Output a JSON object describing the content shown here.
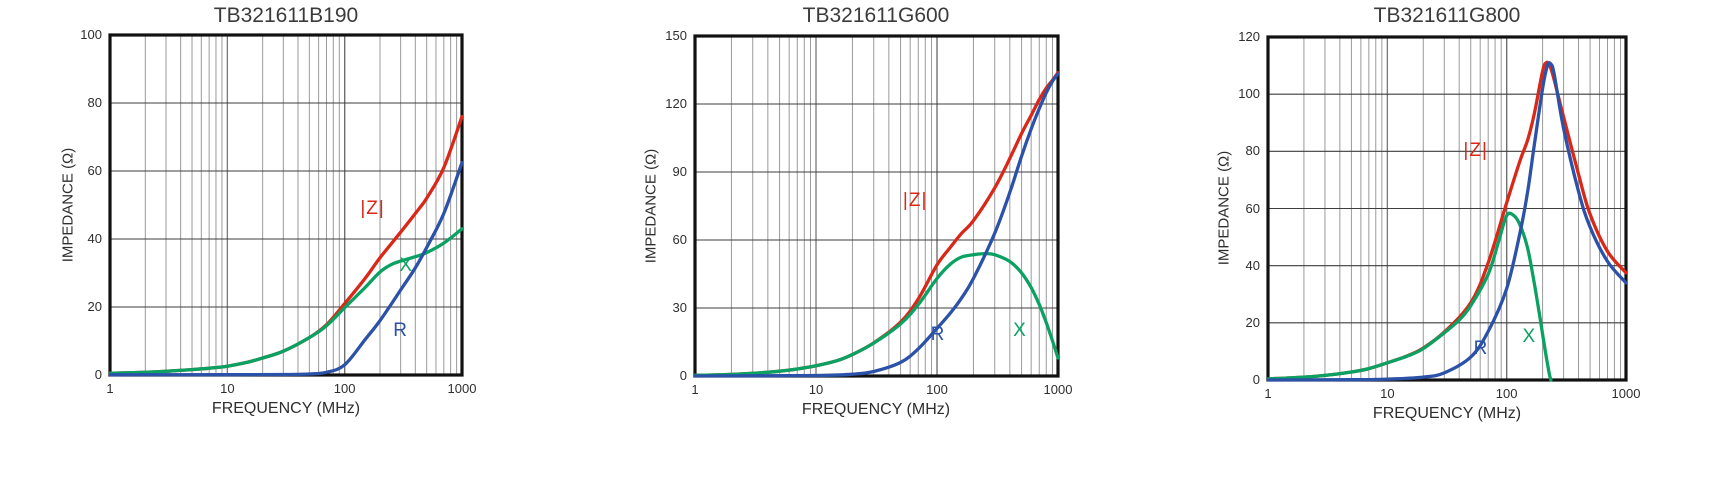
{
  "chart_data": [
    {
      "type": "line",
      "title": "TB321611B190",
      "xlabel": "FREQUENCY (MHz)",
      "ylabel": "IMPEDANCE (Ω)",
      "xscale": "log",
      "xlim": [
        1,
        1000
      ],
      "ylim": [
        0,
        100
      ],
      "x_ticks": [
        1,
        10,
        100,
        1000
      ],
      "y_ticks": [
        0,
        20,
        40,
        60,
        80,
        100
      ],
      "grid": true,
      "legend_position": "inline-labels",
      "series": [
        {
          "name": "|Z|",
          "color": "#d92718",
          "points": [
            [
              1,
              0.5
            ],
            [
              2,
              0.8
            ],
            [
              3,
              1.1
            ],
            [
              5,
              1.6
            ],
            [
              7,
              2.0
            ],
            [
              10,
              2.6
            ],
            [
              15,
              3.8
            ],
            [
              20,
              5
            ],
            [
              30,
              7
            ],
            [
              50,
              11
            ],
            [
              70,
              14.8
            ],
            [
              100,
              21
            ],
            [
              150,
              28.5
            ],
            [
              200,
              34.5
            ],
            [
              300,
              42
            ],
            [
              400,
              47.5
            ],
            [
              500,
              52
            ],
            [
              700,
              61
            ],
            [
              1000,
              76
            ]
          ]
        },
        {
          "name": "X",
          "color": "#0ba163",
          "points": [
            [
              1,
              0.5
            ],
            [
              2,
              0.8
            ],
            [
              3,
              1.1
            ],
            [
              5,
              1.6
            ],
            [
              7,
              2.0
            ],
            [
              10,
              2.6
            ],
            [
              15,
              3.8
            ],
            [
              20,
              5
            ],
            [
              30,
              7
            ],
            [
              50,
              11
            ],
            [
              70,
              14.5
            ],
            [
              100,
              19.8
            ],
            [
              150,
              25.8
            ],
            [
              200,
              30.3
            ],
            [
              250,
              32.5
            ],
            [
              300,
              33.5
            ],
            [
              400,
              34.8
            ],
            [
              500,
              36
            ],
            [
              700,
              38.8
            ],
            [
              1000,
              43
            ]
          ]
        },
        {
          "name": "R",
          "color": "#2b52a8",
          "points": [
            [
              1,
              0.05
            ],
            [
              10,
              0.1
            ],
            [
              30,
              0.15
            ],
            [
              50,
              0.3
            ],
            [
              70,
              0.8
            ],
            [
              100,
              3
            ],
            [
              150,
              10.5
            ],
            [
              200,
              16
            ],
            [
              300,
              25
            ],
            [
              400,
              31.5
            ],
            [
              500,
              37.5
            ],
            [
              700,
              47.5
            ],
            [
              1000,
              62.5
            ]
          ]
        }
      ],
      "annotations": [
        {
          "text": "|Z|",
          "series": 0,
          "f": 173,
          "v": 48.8
        },
        {
          "text": "R",
          "series": 2,
          "f": 300,
          "v": 13
        },
        {
          "text": "X",
          "series": 1,
          "f": 335,
          "v": 32
        }
      ]
    },
    {
      "type": "line",
      "title": "TB321611G600",
      "xlabel": "FREQUENCY (MHz)",
      "ylabel": "IMPEDANCE (Ω)",
      "xscale": "log",
      "xlim": [
        1,
        1000
      ],
      "ylim": [
        0,
        150
      ],
      "x_ticks": [
        1,
        10,
        100,
        1000
      ],
      "y_ticks": [
        0,
        30,
        60,
        90,
        120,
        150
      ],
      "grid": true,
      "legend_position": "inline-labels",
      "series": [
        {
          "name": "|Z|",
          "color": "#d92718",
          "points": [
            [
              1,
              0.3
            ],
            [
              2,
              0.7
            ],
            [
              3,
              1.2
            ],
            [
              5,
              2.1
            ],
            [
              7,
              3.1
            ],
            [
              10,
              4.5
            ],
            [
              15,
              6.8
            ],
            [
              20,
              9.5
            ],
            [
              30,
              14.6
            ],
            [
              50,
              23.8
            ],
            [
              70,
              34
            ],
            [
              100,
              49
            ],
            [
              130,
              57
            ],
            [
              160,
              63
            ],
            [
              200,
              68.5
            ],
            [
              300,
              83
            ],
            [
              400,
              96
            ],
            [
              500,
              107
            ],
            [
              600,
              115
            ],
            [
              700,
              122
            ],
            [
              800,
              127
            ],
            [
              900,
              130.5
            ],
            [
              1000,
              133.8
            ]
          ]
        },
        {
          "name": "X",
          "color": "#0ba163",
          "points": [
            [
              1,
              0.3
            ],
            [
              2,
              0.7
            ],
            [
              3,
              1.2
            ],
            [
              5,
              2.1
            ],
            [
              7,
              3.1
            ],
            [
              10,
              4.5
            ],
            [
              15,
              6.8
            ],
            [
              20,
              9.5
            ],
            [
              30,
              14.5
            ],
            [
              50,
              23
            ],
            [
              70,
              31.5
            ],
            [
              100,
              43
            ],
            [
              130,
              49.5
            ],
            [
              160,
              52.5
            ],
            [
              200,
              53.5
            ],
            [
              250,
              54
            ],
            [
              300,
              53.5
            ],
            [
              400,
              50.5
            ],
            [
              500,
              45.5
            ],
            [
              600,
              39
            ],
            [
              700,
              31.5
            ],
            [
              800,
              23.5
            ],
            [
              900,
              15.5
            ],
            [
              1000,
              8
            ]
          ]
        },
        {
          "name": "R",
          "color": "#2b52a8",
          "points": [
            [
              1,
              0
            ],
            [
              10,
              0.2
            ],
            [
              20,
              0.8
            ],
            [
              30,
              2
            ],
            [
              50,
              6
            ],
            [
              70,
              12
            ],
            [
              100,
              21
            ],
            [
              130,
              28
            ],
            [
              160,
              34.5
            ],
            [
              200,
              43
            ],
            [
              300,
              63
            ],
            [
              400,
              81
            ],
            [
              500,
              97
            ],
            [
              600,
              109
            ],
            [
              700,
              118
            ],
            [
              800,
              125
            ],
            [
              900,
              130
            ],
            [
              1000,
              133.3
            ]
          ]
        }
      ],
      "annotations": [
        {
          "text": "|Z|",
          "series": 0,
          "f": 66,
          "v": 77
        },
        {
          "text": "R",
          "series": 2,
          "f": 102,
          "v": 18
        },
        {
          "text": "X",
          "series": 1,
          "f": 485,
          "v": 20
        }
      ]
    },
    {
      "type": "line",
      "title": "TB321611G800",
      "xlabel": "FREQUENCY (MHz)",
      "ylabel": "IMPEDANCE (Ω)",
      "xscale": "log",
      "xlim": [
        1,
        1000
      ],
      "ylim": [
        0,
        120
      ],
      "x_ticks": [
        1,
        10,
        100,
        1000
      ],
      "y_ticks": [
        0,
        20,
        40,
        60,
        80,
        100,
        120
      ],
      "grid": true,
      "legend_position": "inline-labels",
      "series": [
        {
          "name": "|Z|",
          "color": "#d92718",
          "points": [
            [
              1,
              0.4
            ],
            [
              2,
              1
            ],
            [
              3,
              1.6
            ],
            [
              5,
              2.8
            ],
            [
              7,
              4
            ],
            [
              10,
              6
            ],
            [
              15,
              8.6
            ],
            [
              20,
              11.2
            ],
            [
              30,
              16.8
            ],
            [
              50,
              27
            ],
            [
              70,
              41
            ],
            [
              100,
              62
            ],
            [
              130,
              77
            ],
            [
              150,
              84
            ],
            [
              170,
              93
            ],
            [
              200,
              108
            ],
            [
              215,
              111
            ],
            [
              230,
              110
            ],
            [
              250,
              105
            ],
            [
              300,
              92
            ],
            [
              400,
              72
            ],
            [
              500,
              58
            ],
            [
              700,
              45
            ],
            [
              1000,
              37.5
            ]
          ]
        },
        {
          "name": "X",
          "color": "#0ba163",
          "points": [
            [
              1,
              0.4
            ],
            [
              2,
              1
            ],
            [
              3,
              1.6
            ],
            [
              5,
              2.8
            ],
            [
              7,
              4
            ],
            [
              10,
              6
            ],
            [
              15,
              8.5
            ],
            [
              20,
              11
            ],
            [
              30,
              16.5
            ],
            [
              40,
              21
            ],
            [
              50,
              26
            ],
            [
              70,
              37
            ],
            [
              85,
              48
            ],
            [
              100,
              57.5
            ],
            [
              115,
              57.5
            ],
            [
              130,
              54
            ],
            [
              150,
              46
            ],
            [
              170,
              34
            ],
            [
              185,
              25
            ],
            [
              200,
              16
            ],
            [
              215,
              8
            ],
            [
              228,
              2
            ],
            [
              235,
              0
            ]
          ]
        },
        {
          "name": "R",
          "color": "#2b52a8",
          "points": [
            [
              1,
              0
            ],
            [
              5,
              0.1
            ],
            [
              10,
              0.3
            ],
            [
              20,
              1
            ],
            [
              30,
              2.5
            ],
            [
              50,
              8
            ],
            [
              70,
              17
            ],
            [
              100,
              32
            ],
            [
              130,
              52
            ],
            [
              150,
              66
            ],
            [
              170,
              82
            ],
            [
              200,
              102
            ],
            [
              220,
              110
            ],
            [
              235,
              110.5
            ],
            [
              250,
              107
            ],
            [
              300,
              88
            ],
            [
              400,
              66
            ],
            [
              500,
              53.5
            ],
            [
              700,
              41.5
            ],
            [
              1000,
              34
            ]
          ]
        }
      ],
      "annotations": [
        {
          "text": "|Z|",
          "series": 0,
          "f": 55,
          "v": 80
        },
        {
          "text": "R",
          "series": 2,
          "f": 61,
          "v": 11
        },
        {
          "text": "X",
          "series": 1,
          "f": 155,
          "v": 15
        }
      ]
    }
  ],
  "style": {
    "grid_minor_color": "#9a9a9a",
    "grid_decade_color": "#6e6e6e",
    "grid_horizontal_color": "#3d3d3d",
    "border_color": "#111111",
    "curve_width": 3.3
  }
}
